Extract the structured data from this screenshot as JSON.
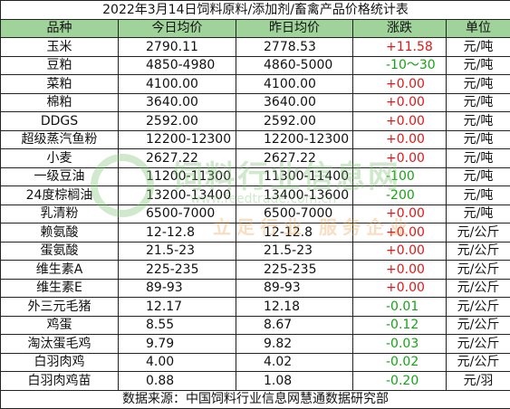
{
  "title": "2022年3月14日饲料原料/添加剂/畜禽产品价格统计表",
  "headers": {
    "name": "品种",
    "today": "今日均价",
    "yesterday": "昨日均价",
    "change": "涨跌",
    "unit": "单位"
  },
  "rows": [
    {
      "name": "玉米",
      "today": "2790.11",
      "yesterday": "2778.53",
      "change": "+11.58",
      "dir": "up",
      "unit": "元/吨"
    },
    {
      "name": "豆粕",
      "today": "4850-4980",
      "yesterday": "4860-5000",
      "change": "-10～30",
      "dir": "down",
      "unit": "元/吨"
    },
    {
      "name": "菜粕",
      "today": "4100.00",
      "yesterday": "4100.00",
      "change": "+0.00",
      "dir": "up",
      "unit": "元/吨"
    },
    {
      "name": "棉粕",
      "today": "3640.00",
      "yesterday": "3640.00",
      "change": "+0.00",
      "dir": "up",
      "unit": "元/吨"
    },
    {
      "name": "DDGS",
      "today": "2592.00",
      "yesterday": "2592.00",
      "change": "+0.00",
      "dir": "up",
      "unit": "元/吨"
    },
    {
      "name": "超级蒸汽鱼粉",
      "today": "12200-12300",
      "yesterday": "12200-12300",
      "change": "+0.00",
      "dir": "up",
      "unit": "元/吨"
    },
    {
      "name": "小麦",
      "today": "2627.22",
      "yesterday": "2627.22",
      "change": "+0.00",
      "dir": "up",
      "unit": "元/吨"
    },
    {
      "name": "一级豆油",
      "today": "11200-11300",
      "yesterday": "11300-11400",
      "change": "-100",
      "dir": "down",
      "unit": "元/吨"
    },
    {
      "name": "24度棕榈油",
      "today": "13200-13400",
      "yesterday": "13400-13600",
      "change": "-200",
      "dir": "down",
      "unit": "元/吨"
    },
    {
      "name": "乳清粉",
      "today": "6500-7000",
      "yesterday": "6500-7000",
      "change": "+0.00",
      "dir": "up",
      "unit": "元/吨"
    },
    {
      "name": "赖氨酸",
      "today": "12-12.8",
      "yesterday": "12-12.8",
      "change": "+0.00",
      "dir": "up",
      "unit": "元/公斤"
    },
    {
      "name": "蛋氨酸",
      "today": "21.5-23",
      "yesterday": "21.5-23",
      "change": "+0.00",
      "dir": "up",
      "unit": "元/公斤"
    },
    {
      "name": "维生素A",
      "today": "225-235",
      "yesterday": "225-235",
      "change": "+0.00",
      "dir": "up",
      "unit": "元/公斤"
    },
    {
      "name": "维生素E",
      "today": "89-93",
      "yesterday": "89-93",
      "change": "+0.00",
      "dir": "up",
      "unit": "元/公斤"
    },
    {
      "name": "外三元毛猪",
      "today": "12.17",
      "yesterday": "12.18",
      "change": "-0.01",
      "dir": "down",
      "unit": "元/公斤"
    },
    {
      "name": "鸡蛋",
      "today": "8.55",
      "yesterday": "8.67",
      "change": "-0.12",
      "dir": "down",
      "unit": "元/公斤"
    },
    {
      "name": "淘汰蛋毛鸡",
      "today": "9.79",
      "yesterday": "9.82",
      "change": "-0.03",
      "dir": "down",
      "unit": "元/公斤"
    },
    {
      "name": "白羽肉鸡",
      "today": "4.00",
      "yesterday": "4.02",
      "change": "-0.02",
      "dir": "down",
      "unit": "元/公斤"
    },
    {
      "name": "白羽肉鸡苗",
      "today": "0.88",
      "yesterday": "1.08",
      "change": "-0.20",
      "dir": "down",
      "unit": "元/羽"
    }
  ],
  "footer": "数据来源：中国饲料行业信息网慧通数据研究部",
  "watermark": {
    "name": "饲料行业信息网",
    "url": "www.feedtrade.com.cn",
    "slogan": "立足行业  服务企业"
  },
  "colors": {
    "header_bg": "#9fd39a",
    "up": "#e01818",
    "down": "#17a317",
    "watermark": "#7cc36f"
  }
}
